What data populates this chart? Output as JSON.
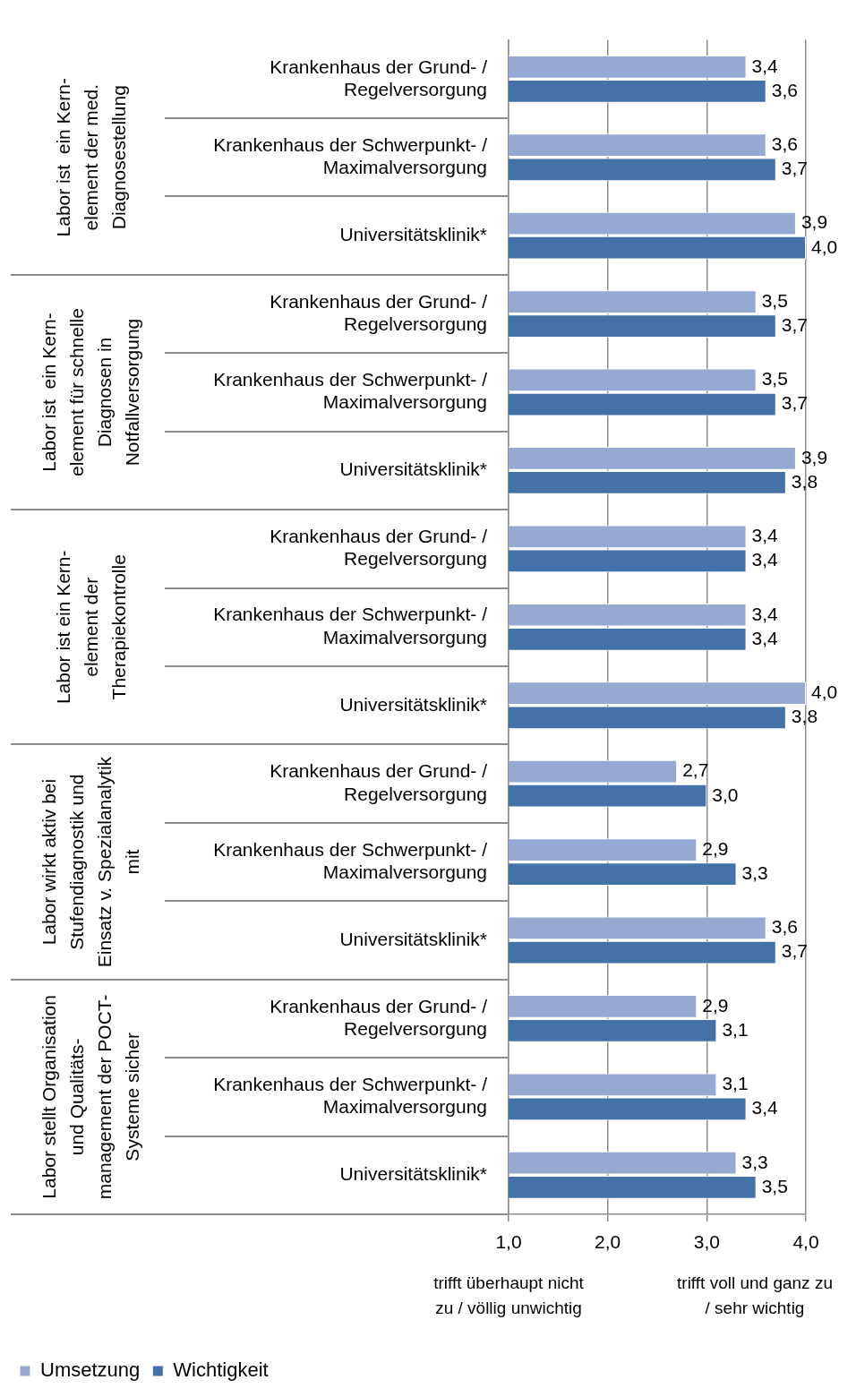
{
  "chart_data": {
    "type": "bar",
    "orientation": "horizontal",
    "categories": [
      "Krankenhaus der Grund- / Regelversorgung",
      "Krankenhaus der Schwerpunkt- / Maximalversorgung",
      "Universitätsklinik*",
      "Krankenhaus der Grund- / Regelversorgung",
      "Krankenhaus der Schwerpunkt- / Maximalversorgung",
      "Universitätsklinik*",
      "Krankenhaus der Grund- / Regelversorgung",
      "Krankenhaus der Schwerpunkt- / Maximalversorgung",
      "Universitätsklinik*",
      "Krankenhaus der Grund- / Regelversorgung",
      "Krankenhaus der Schwerpunkt- / Maximalversorgung",
      "Universitätsklinik*",
      "Krankenhaus der Grund- / Regelversorgung",
      "Krankenhaus der Schwerpunkt- / Maximalversorgung",
      "Universitätsklinik*"
    ],
    "series": [
      {
        "name": "Umsetzung",
        "color": "#95a9d3",
        "values": [
          3.4,
          3.6,
          3.9,
          3.5,
          3.5,
          3.9,
          3.4,
          3.4,
          4.0,
          2.7,
          2.9,
          3.6,
          2.9,
          3.1,
          3.3
        ],
        "value_labels": [
          "3,4",
          "3,6",
          "3,9",
          "3,5",
          "3,5",
          "3,9",
          "3,4",
          "3,4",
          "4,0",
          "2,7",
          "2,9",
          "3,6",
          "2,9",
          "3,1",
          "3,3"
        ]
      },
      {
        "name": "Wichtigkeit",
        "color": "#4371a8",
        "values": [
          3.6,
          3.7,
          4.0,
          3.7,
          3.7,
          3.8,
          3.4,
          3.4,
          3.8,
          3.0,
          3.3,
          3.7,
          3.1,
          3.4,
          3.5
        ],
        "value_labels": [
          "3,6",
          "3,7",
          "4,0",
          "3,7",
          "3,7",
          "3,8",
          "3,4",
          "3,4",
          "3,8",
          "3,0",
          "3,3",
          "3,7",
          "3,1",
          "3,4",
          "3,5"
        ]
      }
    ],
    "xlim": [
      1,
      4
    ],
    "xticks": [
      {
        "value": 1,
        "label": "1,0"
      },
      {
        "value": 2,
        "label": "2,0"
      },
      {
        "value": 3,
        "label": "3,0"
      },
      {
        "value": 4,
        "label": "4,0"
      }
    ],
    "grid": "x",
    "legend": "bottom left",
    "annotations": [
      "Labor ist  ein Kern-\nelement der med.\nDiagnosestellung",
      "Labor ist  ein Kern-\nelement für schnelle\nDiagnosen in\nNotfallversorgung",
      "Labor ist ein Kern-\nelement der\nTherapiekontrolle",
      "Labor wirkt aktiv bei\nStufendiagnostik und\nEinsatz v. Spezialanalytik\nmit",
      "Labor stellt Organisation\nund Qualitäts-\nmanagement der POCT-\nSysteme sicher",
      "trifft überhaupt nicht\nzu / völlig unwichtig",
      "trifft voll und ganz zu\n/ sehr wichtig"
    ]
  }
}
